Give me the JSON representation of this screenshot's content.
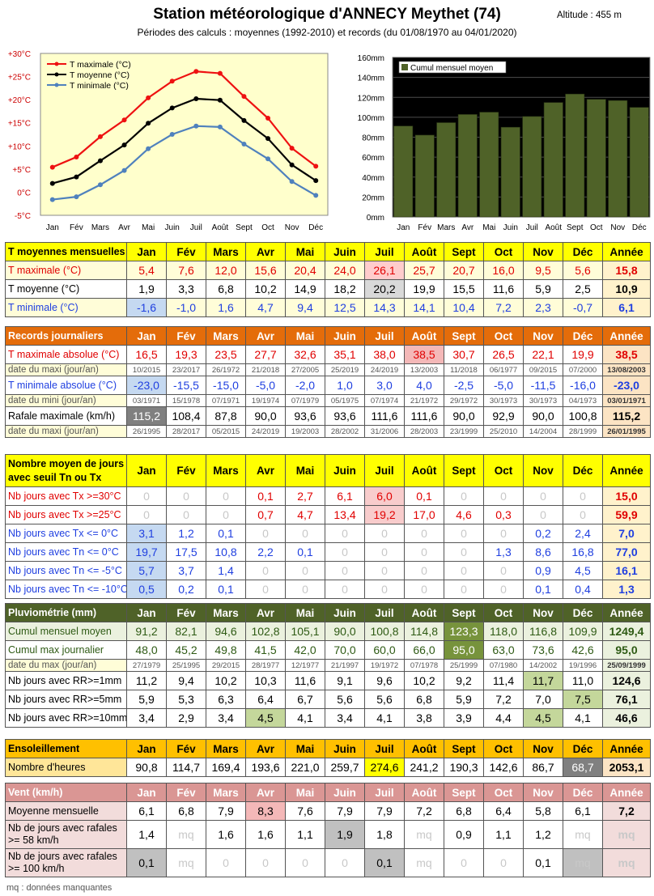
{
  "title": "Station météorologique d'ANNECY Meythet (74)",
  "subtitle": "Périodes des calculs : moyennes (1992-2010) et records (du 01/08/1970 au 04/01/2020)",
  "altitude": "Altitude : 455 m",
  "months": [
    "Jan",
    "Fév",
    "Mars",
    "Avr",
    "Mai",
    "Juin",
    "Juil",
    "Août",
    "Sept",
    "Oct",
    "Nov",
    "Déc"
  ],
  "year_label": "Année",
  "chart_data": [
    {
      "type": "line",
      "categories": [
        "Jan",
        "Fév",
        "Mars",
        "Avr",
        "Mai",
        "Juin",
        "Juil",
        "Août",
        "Sept",
        "Oct",
        "Nov",
        "Déc"
      ],
      "series": [
        {
          "name": "T maximale (°C)",
          "values": [
            5.4,
            7.6,
            12.0,
            15.6,
            20.4,
            24.0,
            26.1,
            25.7,
            20.7,
            16.0,
            9.5,
            5.6
          ],
          "color": "#ee1111"
        },
        {
          "name": "T moyenne (°C)",
          "values": [
            1.9,
            3.3,
            6.8,
            10.2,
            14.9,
            18.2,
            20.2,
            19.9,
            15.5,
            11.6,
            5.9,
            2.5
          ],
          "color": "#000000"
        },
        {
          "name": "T minimale (°C)",
          "values": [
            -1.6,
            -1.0,
            1.6,
            4.7,
            9.4,
            12.5,
            14.3,
            14.1,
            10.4,
            7.2,
            2.3,
            -0.7
          ],
          "color": "#4f81bd"
        }
      ],
      "yticks": [
        "+30°C",
        "+25°C",
        "+20°C",
        "+15°C",
        "+10°C",
        "+5°C",
        "0°C",
        "-5°C"
      ],
      "ylim": [
        -5,
        30
      ],
      "grid": false,
      "legend": "top-left",
      "background": "#ffffcc"
    },
    {
      "type": "bar",
      "categories": [
        "Jan",
        "Fév",
        "Mars",
        "Avr",
        "Mai",
        "Juin",
        "Juil",
        "Août",
        "Sept",
        "Oct",
        "Nov",
        "Déc"
      ],
      "series": [
        {
          "name": "Cumul mensuel moyen",
          "values": [
            91.2,
            82.1,
            94.6,
            102.8,
            105.1,
            90.0,
            100.8,
            114.8,
            123.3,
            118.0,
            116.8,
            109.9
          ],
          "color": "#4f6228"
        }
      ],
      "yticks": [
        "160mm",
        "140mm",
        "120mm",
        "100mm",
        "80mm",
        "60mm",
        "40mm",
        "20mm",
        "0mm"
      ],
      "ylim": [
        0,
        160
      ],
      "grid": true,
      "legend": "top-left",
      "background": "#000000"
    }
  ],
  "tables": [
    {
      "header_label": "T moyennes mensuelles",
      "header_bg": "#ffff00",
      "header_color": "#000000",
      "rows": [
        {
          "label": "T maximale (°C)",
          "cls": "red",
          "values": [
            "5,4",
            "7,6",
            "12,0",
            "15,6",
            "20,4",
            "24,0",
            "26,1",
            "25,7",
            "20,7",
            "16,0",
            "9,5",
            "5,6"
          ],
          "annual": "15,8",
          "bg": "#fffdd8",
          "year_bg": "#fff2cc",
          "highlight": {
            "6": "#ffcccc"
          }
        },
        {
          "label": "T moyenne (°C)",
          "cls": "",
          "values": [
            "1,9",
            "3,3",
            "6,8",
            "10,2",
            "14,9",
            "18,2",
            "20,2",
            "19,9",
            "15,5",
            "11,6",
            "5,9",
            "2,5"
          ],
          "annual": "10,9",
          "bg": "#ffffff",
          "year_bg": "#fff2cc",
          "highlight": {
            "6": "#d9d9d9"
          }
        },
        {
          "label": "T minimale (°C)",
          "cls": "blue",
          "values": [
            "-1,6",
            "-1,0",
            "1,6",
            "4,7",
            "9,4",
            "12,5",
            "14,3",
            "14,1",
            "10,4",
            "7,2",
            "2,3",
            "-0,7"
          ],
          "annual": "6,1",
          "bg": "#fffdd8",
          "year_bg": "#fff2cc",
          "highlight": {
            "0": "#c5d9f1"
          }
        }
      ]
    },
    {
      "header_label": "Records journaliers",
      "header_bg": "#e46c0a",
      "header_color": "#ffffff",
      "rows": [
        {
          "label": "T maximale absolue (°C)",
          "cls": "red",
          "values": [
            "16,5",
            "19,3",
            "23,5",
            "27,7",
            "32,6",
            "35,1",
            "38,0",
            "38,5",
            "30,7",
            "26,5",
            "22,1",
            "19,9"
          ],
          "annual": "38,5",
          "bg": "#ffffff",
          "year_bg": "#fce4c4",
          "highlight": {
            "7": "#f4b8b8"
          }
        },
        {
          "label": "date du maxi (jour/an)",
          "date": true,
          "values": [
            "10/2015",
            "23/2017",
            "26/1972",
            "21/2018",
            "27/2005",
            "25/2019",
            "24/2019",
            "13/2003",
            "11/2018",
            "06/1977",
            "09/2015",
            "07/2000"
          ],
          "annual": "13/08/2003",
          "bg": "#ffffff",
          "year_bg": "#fce4c4"
        },
        {
          "label": "T minimale absolue (°C)",
          "cls": "blue",
          "values": [
            "-23,0",
            "-15,5",
            "-15,0",
            "-5,0",
            "-2,0",
            "1,0",
            "3,0",
            "4,0",
            "-2,5",
            "-5,0",
            "-11,5",
            "-16,0"
          ],
          "annual": "-23,0",
          "bg": "#ffffff",
          "year_bg": "#fce4c4",
          "highlight": {
            "0": "#c5d9f1"
          }
        },
        {
          "label": "date du mini (jour/an)",
          "date": true,
          "values": [
            "03/1971",
            "15/1978",
            "07/1971",
            "19/1974",
            "07/1979",
            "05/1975",
            "07/1974",
            "21/1972",
            "29/1972",
            "30/1973",
            "30/1973",
            "04/1973"
          ],
          "annual": "03/01/1971",
          "bg": "#ffffff",
          "year_bg": "#fce4c4"
        },
        {
          "label": "Rafale maximale (km/h)",
          "cls": "",
          "values": [
            "115,2",
            "108,4",
            "87,8",
            "90,0",
            "93,6",
            "93,6",
            "111,6",
            "111,6",
            "90,0",
            "92,9",
            "90,0",
            "100,8"
          ],
          "annual": "115,2",
          "bg": "#ffffff",
          "year_bg": "#fce4c4",
          "highlight": {
            "0": "#808080"
          },
          "hl_color": {
            "0": "#ffffff"
          }
        },
        {
          "label": "date du maxi (jour/an)",
          "date": true,
          "values": [
            "26/1995",
            "28/2017",
            "05/2015",
            "24/2019",
            "19/2003",
            "28/2002",
            "31/2006",
            "28/2003",
            "23/1999",
            "25/2010",
            "14/2004",
            "28/1999"
          ],
          "annual": "26/01/1995",
          "bg": "#ffffff",
          "year_bg": "#fce4c4"
        }
      ]
    },
    {
      "header_label": "Nombre moyen de jours avec seuil Tn ou Tx",
      "header_bg": "#ffff00",
      "header_color": "#000000",
      "header_tall": true,
      "rows": [
        {
          "label": "Nb jours avec Tx >=30°C",
          "cls": "red",
          "values": [
            "0",
            "0",
            "0",
            "0,1",
            "2,7",
            "6,1",
            "6,0",
            "0,1",
            "0",
            "0",
            "0",
            "0"
          ],
          "annual": "15,0",
          "bg": "#ffffff",
          "year_bg": "#fff2cc",
          "zeros_gray": true,
          "highlight": {
            "6": "#f8cccc"
          }
        },
        {
          "label": "Nb jours avec Tx >=25°C",
          "cls": "red",
          "values": [
            "0",
            "0",
            "0",
            "0,7",
            "4,7",
            "13,4",
            "19,2",
            "17,0",
            "4,6",
            "0,3",
            "0",
            "0"
          ],
          "annual": "59,9",
          "bg": "#ffffff",
          "year_bg": "#fff2cc",
          "zeros_gray": true,
          "highlight": {
            "6": "#f8cccc"
          }
        },
        {
          "label": "Nb jours avec Tx <= 0°C",
          "cls": "blue",
          "values": [
            "3,1",
            "1,2",
            "0,1",
            "0",
            "0",
            "0",
            "0",
            "0",
            "0",
            "0",
            "0,2",
            "2,4"
          ],
          "annual": "7,0",
          "bg": "#ffffff",
          "year_bg": "#fff2cc",
          "zeros_gray": true,
          "highlight": {
            "0": "#c5d9f1"
          }
        },
        {
          "label": "Nb jours avec Tn <= 0°C",
          "cls": "blue",
          "values": [
            "19,7",
            "17,5",
            "10,8",
            "2,2",
            "0,1",
            "0",
            "0",
            "0",
            "0",
            "1,3",
            "8,6",
            "16,8"
          ],
          "annual": "77,0",
          "bg": "#ffffff",
          "year_bg": "#fff2cc",
          "zeros_gray": true,
          "highlight": {
            "0": "#c5d9f1"
          }
        },
        {
          "label": "Nb jours avec Tn <= -5°C",
          "cls": "blue",
          "values": [
            "5,7",
            "3,7",
            "1,4",
            "0",
            "0",
            "0",
            "0",
            "0",
            "0",
            "0",
            "0,9",
            "4,5"
          ],
          "annual": "16,1",
          "bg": "#ffffff",
          "year_bg": "#fff2cc",
          "zeros_gray": true,
          "highlight": {
            "0": "#c5d9f1"
          }
        },
        {
          "label": "Nb jours avec Tn <= -10°C",
          "cls": "blue",
          "values": [
            "0,5",
            "0,2",
            "0,1",
            "0",
            "0",
            "0",
            "0",
            "0",
            "0",
            "0",
            "0,1",
            "0,4"
          ],
          "annual": "1,3",
          "bg": "#ffffff",
          "year_bg": "#fff2cc",
          "zeros_gray": true,
          "highlight": {
            "0": "#c5d9f1"
          }
        }
      ]
    },
    {
      "header_label": "Pluviométrie (mm)",
      "header_bg": "#4f6228",
      "header_color": "#ffffff",
      "rows": [
        {
          "label": "Cumul mensuel moyen",
          "cls": "green",
          "values": [
            "91,2",
            "82,1",
            "94,6",
            "102,8",
            "105,1",
            "90,0",
            "100,8",
            "114,8",
            "123,3",
            "118,0",
            "116,8",
            "109,9"
          ],
          "annual": "1249,4",
          "bg": "#ebf1de",
          "year_bg": "#ebf1de",
          "highlight": {
            "8": "#77933c"
          },
          "hl_color": {
            "8": "#ffffff"
          }
        },
        {
          "label": "Cumul max journalier",
          "cls": "green",
          "values": [
            "48,0",
            "45,2",
            "49,8",
            "41,5",
            "42,0",
            "70,0",
            "60,0",
            "66,0",
            "95,0",
            "63,0",
            "73,6",
            "42,6"
          ],
          "annual": "95,0",
          "bg": "#ffffff",
          "year_bg": "#ebf1de",
          "highlight": {
            "8": "#77933c"
          },
          "hl_color": {
            "8": "#ffffff"
          }
        },
        {
          "label": "date du max (jour/an)",
          "date": true,
          "values": [
            "27/1979",
            "25/1995",
            "29/2015",
            "28/1977",
            "12/1977",
            "21/1997",
            "19/1972",
            "07/1978",
            "25/1999",
            "07/1980",
            "14/2002",
            "19/1996"
          ],
          "annual": "25/09/1999",
          "bg": "#ffffff",
          "year_bg": "#ebf1de"
        },
        {
          "label": "Nb jours avec RR>=1mm",
          "cls": "",
          "values": [
            "11,2",
            "9,4",
            "10,2",
            "10,3",
            "11,6",
            "9,1",
            "9,6",
            "10,2",
            "9,2",
            "11,4",
            "11,7",
            "11,0"
          ],
          "annual": "124,6",
          "bg": "#ffffff",
          "year_bg": "#ebf1de",
          "highlight": {
            "10": "#c4d79b"
          }
        },
        {
          "label": "Nb jours avec RR>=5mm",
          "cls": "",
          "values": [
            "5,9",
            "5,3",
            "6,3",
            "6,4",
            "6,7",
            "5,6",
            "5,6",
            "6,8",
            "5,9",
            "7,2",
            "7,0",
            "7,5"
          ],
          "annual": "76,1",
          "bg": "#ffffff",
          "year_bg": "#ebf1de",
          "highlight": {
            "11": "#c4d79b"
          }
        },
        {
          "label": "Nb jours avec RR>=10mm",
          "cls": "",
          "values": [
            "3,4",
            "2,9",
            "3,4",
            "4,5",
            "4,1",
            "3,4",
            "4,1",
            "3,8",
            "3,9",
            "4,4",
            "4,5",
            "4,1"
          ],
          "annual": "46,6",
          "bg": "#ffffff",
          "year_bg": "#ebf1de",
          "highlight": {
            "3": "#c4d79b",
            "10": "#c4d79b"
          }
        }
      ]
    },
    {
      "header_label": "Ensoleillement",
      "header_bg": "#ffc000",
      "header_color": "#000000",
      "rows": [
        {
          "label": "Nombre d'heures",
          "cls": "",
          "values": [
            "90,8",
            "114,7",
            "169,4",
            "193,6",
            "221,0",
            "259,7",
            "274,6",
            "241,2",
            "190,3",
            "142,6",
            "86,7",
            "68,7"
          ],
          "annual": "2053,1",
          "bg": "#ffffff",
          "label_bg": "#ffe699",
          "year_bg": "#fce4c4",
          "highlight": {
            "6": "#ffff00",
            "11": "#808080"
          },
          "hl_color": {
            "11": "#ffffff"
          }
        }
      ]
    },
    {
      "header_label": "Vent (km/h)",
      "header_bg": "#da9694",
      "header_color": "#ffffff",
      "rows": [
        {
          "label": "Moyenne mensuelle",
          "cls": "",
          "values": [
            "6,1",
            "6,8",
            "7,9",
            "8,3",
            "7,6",
            "7,9",
            "7,9",
            "7,2",
            "6,8",
            "6,4",
            "5,8",
            "6,1"
          ],
          "annual": "7,2",
          "bg": "#ffffff",
          "label_bg": "#f2dcdb",
          "year_bg": "#f2dcdb",
          "highlight": {
            "3": "#f4b8b8"
          }
        },
        {
          "label": "Nb de jours avec rafales >= 58 km/h",
          "cls": "",
          "tall": true,
          "values": [
            "1,4",
            "mq",
            "1,6",
            "1,6",
            "1,1",
            "1,9",
            "1,8",
            "mq",
            "0,9",
            "1,1",
            "1,2",
            "mq"
          ],
          "annual": "mq",
          "bg": "#ffffff",
          "label_bg": "#f2dcdb",
          "year_bg": "#f2dcdb",
          "highlight": {
            "5": "#c0c0c0"
          }
        },
        {
          "label": "Nb de jours avec rafales >= 100 km/h",
          "cls": "",
          "tall": true,
          "values": [
            "0,1",
            "mq",
            "0",
            "0",
            "0",
            "0",
            "0,1",
            "mq",
            "0",
            "0",
            "0,1",
            "mq"
          ],
          "annual": "mq",
          "bg": "#ffffff",
          "label_bg": "#f2dcdb",
          "year_bg": "#f2dcdb",
          "zeros_gray": true,
          "highlight": {
            "0": "#c0c0c0",
            "6": "#c0c0c0",
            "11": "#c0c0c0"
          }
        }
      ]
    }
  ],
  "note": "mq : données manquantes"
}
